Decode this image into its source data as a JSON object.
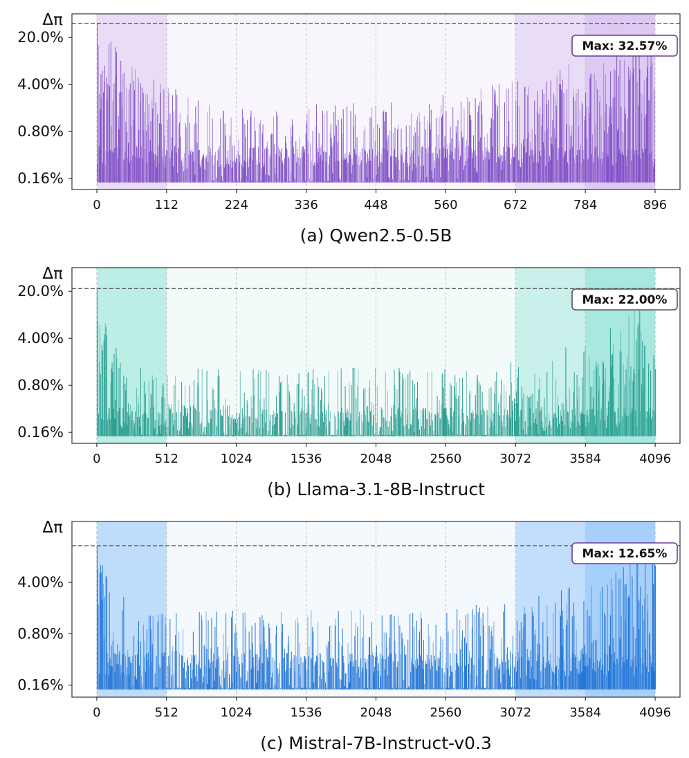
{
  "chart_data": [
    {
      "type": "bar",
      "caption": "(a) Qwen2.5-0.5B",
      "ylabel": "Δπ",
      "yscale": "log",
      "ylim": [
        0.0011,
        0.45
      ],
      "yticks": [
        {
          "value": 0.0016,
          "label": "0.16%"
        },
        {
          "value": 0.008,
          "label": "0.80%"
        },
        {
          "value": 0.04,
          "label": "4.00%"
        },
        {
          "value": 0.2,
          "label": "20.0%"
        }
      ],
      "xlim": [
        -40,
        936
      ],
      "xticks": [
        0,
        112,
        224,
        336,
        448,
        560,
        672,
        784,
        896
      ],
      "n": 896,
      "baseline": 0.0014,
      "max_value": 0.3257,
      "max_label": "Max: 32.57%",
      "max_line": 0.3257,
      "color": "#7a45c2",
      "frame_color": "#6a3d9a",
      "regions": [
        {
          "from": 0,
          "to": 112,
          "color": "#e9dcf6"
        },
        {
          "from": 112,
          "to": 672,
          "color": "#f8f5fd"
        },
        {
          "from": 672,
          "to": 784,
          "color": "#e9dcf6"
        },
        {
          "from": 784,
          "to": 896,
          "color": "#ddcaf2"
        }
      ],
      "profile": {
        "start": 0.06,
        "decay": 0.05,
        "floor": 0.0042,
        "end": 0.05,
        "rise": 0.12
      }
    },
    {
      "type": "bar",
      "caption": "(b) Llama-3.1-8B-Instruct",
      "ylabel": "Δπ",
      "yscale": "log",
      "ylim": [
        0.0011,
        0.45
      ],
      "yticks": [
        {
          "value": 0.0016,
          "label": "0.16%"
        },
        {
          "value": 0.008,
          "label": "0.80%"
        },
        {
          "value": 0.04,
          "label": "4.00%"
        },
        {
          "value": 0.2,
          "label": "20.0%"
        }
      ],
      "xlim": [
        -182,
        4278
      ],
      "xticks": [
        0,
        512,
        1024,
        1536,
        2048,
        2560,
        3072,
        3584,
        4096
      ],
      "n": 4096,
      "baseline": 0.0014,
      "max_value": 0.22,
      "max_label": "Max: 22.00%",
      "max_line": 0.22,
      "color": "#22998c",
      "frame_color": "#555555",
      "regions": [
        {
          "from": 0,
          "to": 512,
          "color": "#bdeee6"
        },
        {
          "from": 512,
          "to": 3072,
          "color": "#f3fbfa"
        },
        {
          "from": 3072,
          "to": 3584,
          "color": "#c9f0ea"
        },
        {
          "from": 3584,
          "to": 4096,
          "color": "#a8e8df"
        }
      ],
      "profile": {
        "start": 0.03,
        "decay": 0.018,
        "floor": 0.0033,
        "end": 0.035,
        "rise": 0.07
      }
    },
    {
      "type": "bar",
      "caption": "(c) Mistral-7B-Instruct-v0.3",
      "ylabel": "Δπ",
      "yscale": "log",
      "ylim": [
        0.0011,
        0.27
      ],
      "yticks": [
        {
          "value": 0.0016,
          "label": "0.16%"
        },
        {
          "value": 0.008,
          "label": "0.80%"
        },
        {
          "value": 0.04,
          "label": "4.00%"
        }
      ],
      "xlim": [
        -182,
        4278
      ],
      "xticks": [
        0,
        512,
        1024,
        1536,
        2048,
        2560,
        3072,
        3584,
        4096
      ],
      "n": 4096,
      "baseline": 0.0014,
      "max_value": 0.1265,
      "max_label": "Max: 12.65%",
      "max_line": 0.1265,
      "color": "#1a6fd4",
      "frame_color": "#6a3d9a",
      "regions": [
        {
          "from": 0,
          "to": 512,
          "color": "#bfdcfb"
        },
        {
          "from": 512,
          "to": 3072,
          "color": "#f4f9fe"
        },
        {
          "from": 3072,
          "to": 3584,
          "color": "#c2defc"
        },
        {
          "from": 3584,
          "to": 4096,
          "color": "#a6cffa"
        }
      ],
      "profile": {
        "start": 0.03,
        "decay": 0.02,
        "floor": 0.0038,
        "end": 0.022,
        "rise": 0.09
      }
    }
  ]
}
